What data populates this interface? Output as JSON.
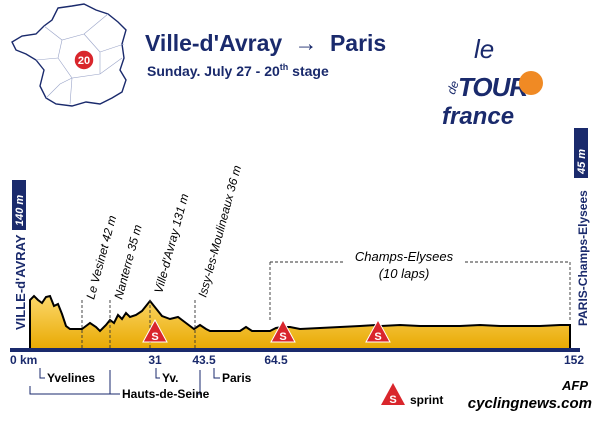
{
  "title": {
    "start": "Ville-d'Avray",
    "arrow": "→",
    "finish": "Paris",
    "date": "Sunday. July 27 - 20",
    "date_sup": "th",
    "date_tail": " stage",
    "map_badge": "20"
  },
  "logo": {
    "le": "le",
    "de": "de",
    "tour": "TOUR",
    "france": "france"
  },
  "start_label": "VILLE-d'AVRAY",
  "start_alt": "140 m",
  "finish_label": "PARIS-Champs-Elysees",
  "finish_alt": "45 m",
  "climbs": [
    {
      "label": "Le Vesinet 42 m"
    },
    {
      "label": "Nanterre 35 m"
    },
    {
      "label": "Ville-d'Avray 131 m"
    },
    {
      "label": "Issy-les-Moulineaux 36 m"
    }
  ],
  "circuit": {
    "line1": "Champs-Elysees",
    "line2": "(10 laps)"
  },
  "sprint_letter": "S",
  "km_marks": [
    {
      "label": "0 km",
      "km": 0
    },
    {
      "label": "31",
      "km": 31
    },
    {
      "label": "43.5",
      "km": 43.5
    },
    {
      "label": "64.5",
      "km": 64.5
    },
    {
      "label": "152",
      "km": 152
    }
  ],
  "departements": [
    {
      "label": "Yvelines"
    },
    {
      "label": "Hauts-de-Seine"
    },
    {
      "label": "Yv."
    },
    {
      "label": "Paris"
    }
  ],
  "legend": {
    "label": "sprint"
  },
  "credits": {
    "agency": "AFP",
    "site": "cyclingnews.com"
  },
  "colors": {
    "navy": "#1a2a6c",
    "profile_fill": "#f5b800",
    "sprint_red": "#d9262c",
    "logo_orange": "#f08a24"
  }
}
